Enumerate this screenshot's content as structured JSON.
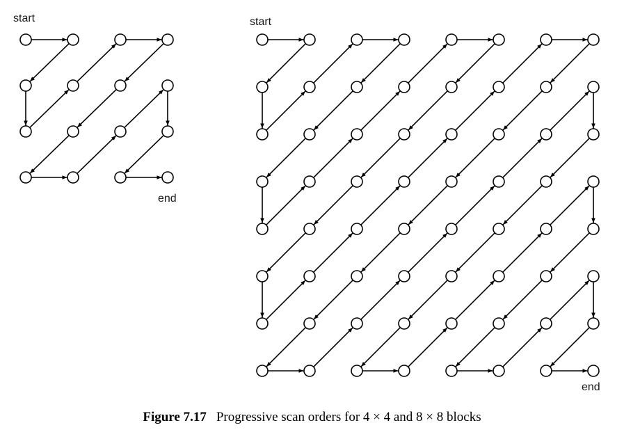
{
  "diagrams": [
    {
      "id": "scan-4x4",
      "grid": 4,
      "start_label": "start",
      "end_label": "end",
      "order": [
        [
          0,
          0
        ],
        [
          0,
          1
        ],
        [
          1,
          0
        ],
        [
          2,
          0
        ],
        [
          1,
          1
        ],
        [
          0,
          2
        ],
        [
          0,
          3
        ],
        [
          1,
          2
        ],
        [
          2,
          1
        ],
        [
          3,
          0
        ],
        [
          3,
          1
        ],
        [
          2,
          2
        ],
        [
          1,
          3
        ],
        [
          2,
          3
        ],
        [
          3,
          2
        ],
        [
          3,
          3
        ]
      ]
    },
    {
      "id": "scan-8x8",
      "grid": 8,
      "start_label": "start",
      "end_label": "end",
      "order": [
        [
          0,
          0
        ],
        [
          0,
          1
        ],
        [
          1,
          0
        ],
        [
          2,
          0
        ],
        [
          1,
          1
        ],
        [
          0,
          2
        ],
        [
          0,
          3
        ],
        [
          1,
          2
        ],
        [
          2,
          1
        ],
        [
          3,
          0
        ],
        [
          4,
          0
        ],
        [
          3,
          1
        ],
        [
          2,
          2
        ],
        [
          1,
          3
        ],
        [
          0,
          4
        ],
        [
          0,
          5
        ],
        [
          1,
          4
        ],
        [
          2,
          3
        ],
        [
          3,
          2
        ],
        [
          4,
          1
        ],
        [
          5,
          0
        ],
        [
          6,
          0
        ],
        [
          5,
          1
        ],
        [
          4,
          2
        ],
        [
          3,
          3
        ],
        [
          2,
          4
        ],
        [
          1,
          5
        ],
        [
          0,
          6
        ],
        [
          0,
          7
        ],
        [
          1,
          6
        ],
        [
          2,
          5
        ],
        [
          3,
          4
        ],
        [
          4,
          3
        ],
        [
          5,
          2
        ],
        [
          6,
          1
        ],
        [
          7,
          0
        ],
        [
          7,
          1
        ],
        [
          6,
          2
        ],
        [
          5,
          3
        ],
        [
          4,
          4
        ],
        [
          3,
          5
        ],
        [
          2,
          6
        ],
        [
          1,
          7
        ],
        [
          2,
          7
        ],
        [
          3,
          6
        ],
        [
          4,
          5
        ],
        [
          5,
          4
        ],
        [
          6,
          3
        ],
        [
          7,
          2
        ],
        [
          7,
          3
        ],
        [
          6,
          4
        ],
        [
          5,
          5
        ],
        [
          4,
          6
        ],
        [
          3,
          7
        ],
        [
          4,
          7
        ],
        [
          5,
          6
        ],
        [
          6,
          5
        ],
        [
          7,
          4
        ],
        [
          7,
          5
        ],
        [
          6,
          6
        ],
        [
          5,
          7
        ],
        [
          6,
          7
        ],
        [
          7,
          6
        ],
        [
          7,
          7
        ]
      ]
    }
  ],
  "caption": {
    "number": "Figure 7.17",
    "text": "Progressive scan orders for 4 × 4 and 8 × 8 blocks"
  }
}
